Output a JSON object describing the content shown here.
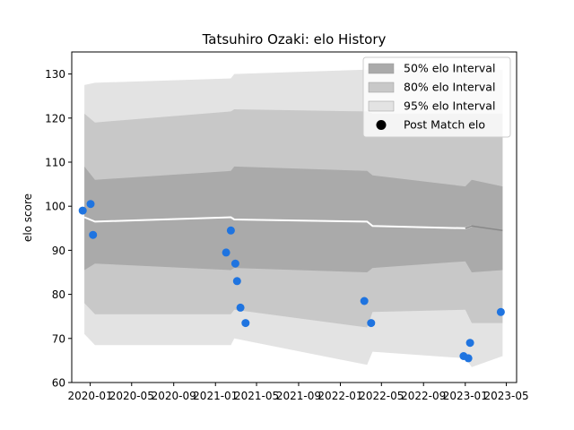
{
  "chart_data": {
    "type": "line",
    "title": "Tatsuhiro Ozaki: elo History",
    "xlabel": "",
    "ylabel": "elo score",
    "ylim": [
      60,
      135
    ],
    "xlim": [
      "2019-11-08",
      "2023-05-31"
    ],
    "grid": false,
    "legend_placement": "top-right",
    "y_ticks": [
      60,
      70,
      80,
      90,
      100,
      110,
      120,
      130
    ],
    "x_ticks": [
      "2020-01",
      "2020-05",
      "2020-09",
      "2021-01",
      "2021-05",
      "2021-09",
      "2022-01",
      "2022-05",
      "2022-09",
      "2023-01",
      "2023-05"
    ],
    "colors": {
      "band_50": "#aaaaaa",
      "band_80": "#c8c8c8",
      "band_95": "#e3e3e3",
      "mean_line": "#ffffff",
      "mean_line_end": "#888888",
      "points": "#1f74e0"
    },
    "legend": [
      {
        "label": "50% elo Interval",
        "kind": "band",
        "color": "#aaaaaa"
      },
      {
        "label": "80% elo Interval",
        "kind": "band",
        "color": "#c8c8c8"
      },
      {
        "label": "95% elo Interval",
        "kind": "band",
        "color": "#e3e3e3"
      },
      {
        "label": "Post Match elo",
        "kind": "marker",
        "color": "#000000"
      }
    ],
    "bands": {
      "x": [
        "2019-12-15",
        "2020-01-15",
        "2021-02-15",
        "2021-02-25",
        "2022-03-20",
        "2022-04-05",
        "2023-01-01",
        "2023-01-20",
        "2023-04-20"
      ],
      "mean": [
        97.5,
        96.5,
        97.5,
        97.0,
        96.5,
        95.5,
        95.0,
        95.5,
        94.5
      ],
      "p50_upper": [
        109,
        106,
        108,
        109,
        108,
        107,
        104.5,
        106,
        104.5
      ],
      "p50_lower": [
        85.5,
        87,
        85.5,
        86,
        85,
        86,
        87.5,
        85,
        85.5
      ],
      "p80_upper": [
        121,
        119,
        121.5,
        122,
        121.5,
        121,
        121,
        121,
        121
      ],
      "p80_lower": [
        78,
        75.5,
        75.5,
        76.5,
        72.5,
        76,
        76.5,
        73.5,
        73.5
      ],
      "p95_upper": [
        127.5,
        128,
        129,
        130,
        131,
        131,
        131,
        131,
        131
      ],
      "p95_lower": [
        71,
        68.5,
        68.5,
        70,
        64,
        67,
        65.5,
        63.5,
        66
      ]
    },
    "series": [
      {
        "name": "Post Match elo",
        "points": [
          {
            "x": "2019-12-10",
            "y": 99
          },
          {
            "x": "2020-01-02",
            "y": 100.5
          },
          {
            "x": "2020-01-09",
            "y": 93.5
          },
          {
            "x": "2021-02-01",
            "y": 89.5
          },
          {
            "x": "2021-02-15",
            "y": 94.5
          },
          {
            "x": "2021-02-28",
            "y": 87
          },
          {
            "x": "2021-03-05",
            "y": 83
          },
          {
            "x": "2021-03-15",
            "y": 77
          },
          {
            "x": "2021-03-30",
            "y": 73.5
          },
          {
            "x": "2022-03-12",
            "y": 78.5
          },
          {
            "x": "2022-04-01",
            "y": 73.5
          },
          {
            "x": "2022-12-27",
            "y": 66
          },
          {
            "x": "2023-01-10",
            "y": 65.5
          },
          {
            "x": "2023-01-15",
            "y": 69
          },
          {
            "x": "2023-04-15",
            "y": 76
          }
        ]
      }
    ]
  }
}
